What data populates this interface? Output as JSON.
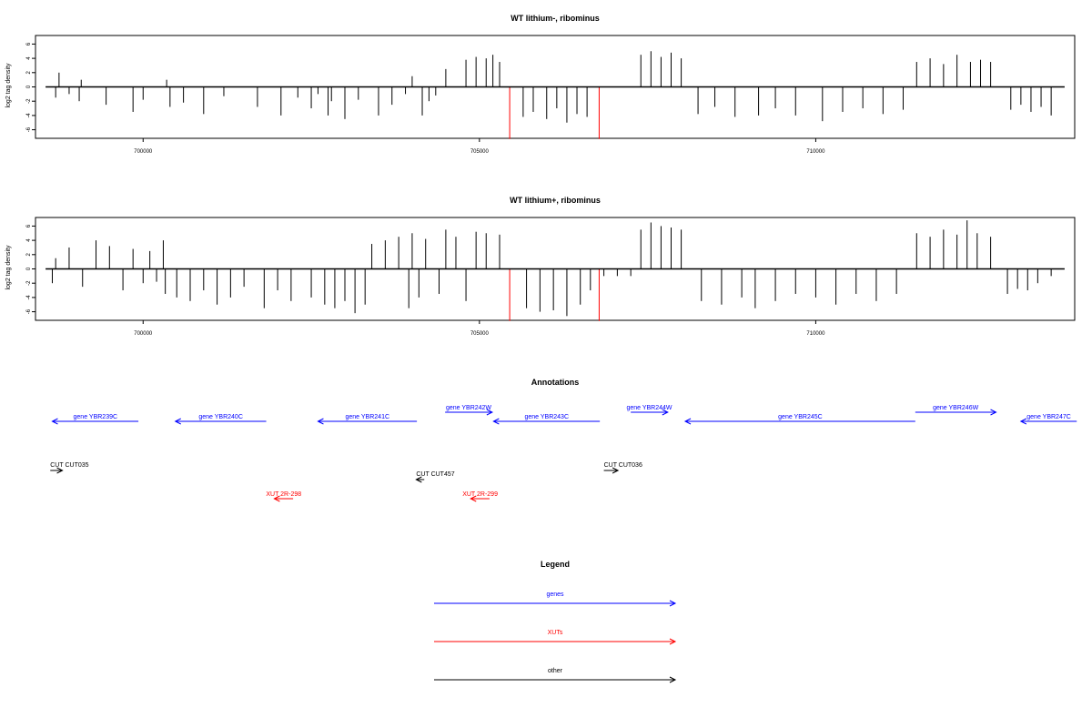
{
  "chart_data": [
    {
      "type": "bar",
      "title": "WT lithium-, ribominus",
      "xlabel": "",
      "ylabel": "log2 tag density",
      "x_ticks": [
        700000,
        705000,
        710000
      ],
      "x_tick_labels": [
        "700000",
        "705000",
        "710000"
      ],
      "y_ticks": [
        -6,
        -4,
        -2,
        0,
        2,
        4,
        6
      ],
      "y_tick_labels": [
        "-6",
        "-4",
        "-2",
        "0",
        "2",
        "4",
        "6"
      ],
      "xlim": [
        698400,
        713850
      ],
      "ylim": [
        -7.2,
        7.2
      ],
      "track_range": [
        698550,
        713700
      ],
      "series": [
        {
          "color": "#000000",
          "values": [
            [
              698700,
              -1.5
            ],
            [
              698750,
              2
            ],
            [
              698900,
              -1
            ],
            [
              699050,
              -2
            ],
            [
              699080,
              1
            ],
            [
              699450,
              -2.5
            ],
            [
              699850,
              -3.5
            ],
            [
              700000,
              -1.8
            ],
            [
              700350,
              1
            ],
            [
              700400,
              -2.8
            ],
            [
              700600,
              -2.2
            ],
            [
              700900,
              -3.8
            ],
            [
              701200,
              -1.3
            ],
            [
              701700,
              -2.8
            ],
            [
              702050,
              -4
            ],
            [
              702300,
              -1.5
            ],
            [
              702500,
              -3
            ],
            [
              702600,
              -1
            ],
            [
              702750,
              -4
            ],
            [
              702800,
              -2
            ],
            [
              703000,
              -4.5
            ],
            [
              703200,
              -1.8
            ],
            [
              703500,
              -4
            ],
            [
              703700,
              -2.5
            ],
            [
              703900,
              -1
            ],
            [
              704000,
              1.5
            ],
            [
              704150,
              -4
            ],
            [
              704250,
              -2
            ],
            [
              704350,
              -1.2
            ],
            [
              704500,
              2.5
            ],
            [
              704800,
              3.8
            ],
            [
              704950,
              4.2
            ],
            [
              705100,
              4
            ],
            [
              705200,
              4.5
            ],
            [
              705300,
              3.5
            ],
            [
              705650,
              -4.2
            ],
            [
              705800,
              -3.5
            ],
            [
              706000,
              -4.5
            ],
            [
              706150,
              -3
            ],
            [
              706300,
              -5
            ],
            [
              706450,
              -3.8
            ],
            [
              706600,
              -4.2
            ],
            [
              707400,
              4.5
            ],
            [
              707550,
              5
            ],
            [
              707700,
              4.2
            ],
            [
              707850,
              4.8
            ],
            [
              708000,
              4
            ],
            [
              708250,
              -3.8
            ],
            [
              708500,
              -2.8
            ],
            [
              708800,
              -4.2
            ],
            [
              709150,
              -4
            ],
            [
              709400,
              -3
            ],
            [
              709700,
              -4
            ],
            [
              710100,
              -4.8
            ],
            [
              710400,
              -3.5
            ],
            [
              710700,
              -3
            ],
            [
              711000,
              -3.8
            ],
            [
              711300,
              -3.2
            ],
            [
              711500,
              3.5
            ],
            [
              711700,
              4
            ],
            [
              711900,
              3.2
            ],
            [
              712100,
              4.5
            ],
            [
              712300,
              3.5
            ],
            [
              712450,
              3.8
            ],
            [
              712600,
              3.5
            ],
            [
              712900,
              -3.2
            ],
            [
              713050,
              -2.5
            ],
            [
              713200,
              -3.5
            ],
            [
              713350,
              -2.8
            ],
            [
              713500,
              -4
            ]
          ]
        },
        {
          "color": "#ff0000",
          "values": [
            [
              705450,
              -7.3
            ],
            [
              706780,
              -7.3
            ]
          ]
        }
      ]
    },
    {
      "type": "bar",
      "title": "WT lithium+, ribominus",
      "xlabel": "",
      "ylabel": "log2 tag density",
      "x_ticks": [
        700000,
        705000,
        710000
      ],
      "x_tick_labels": [
        "700000",
        "705000",
        "710000"
      ],
      "y_ticks": [
        -6,
        -4,
        -2,
        0,
        2,
        4,
        6
      ],
      "y_tick_labels": [
        "-6",
        "-4",
        "-2",
        "0",
        "2",
        "4",
        "6"
      ],
      "xlim": [
        698400,
        713850
      ],
      "ylim": [
        -7.2,
        7.2
      ],
      "track_range": [
        698550,
        713700
      ],
      "series": [
        {
          "color": "#000000",
          "values": [
            [
              698650,
              -2
            ],
            [
              698700,
              1.5
            ],
            [
              698900,
              3
            ],
            [
              699100,
              -2.5
            ],
            [
              699300,
              4
            ],
            [
              699500,
              3.2
            ],
            [
              699700,
              -3
            ],
            [
              699850,
              2.8
            ],
            [
              700000,
              -2
            ],
            [
              700100,
              2.5
            ],
            [
              700200,
              -1.8
            ],
            [
              700300,
              4
            ],
            [
              700330,
              -3.5
            ],
            [
              700500,
              -4
            ],
            [
              700700,
              -4.5
            ],
            [
              700900,
              -3
            ],
            [
              701100,
              -5
            ],
            [
              701300,
              -4
            ],
            [
              701500,
              -2.5
            ],
            [
              701800,
              -5.5
            ],
            [
              702000,
              -3
            ],
            [
              702200,
              -4.5
            ],
            [
              702500,
              -4
            ],
            [
              702700,
              -5
            ],
            [
              702850,
              -5.5
            ],
            [
              703000,
              -4.5
            ],
            [
              703150,
              -6.2
            ],
            [
              703300,
              -5
            ],
            [
              703400,
              3.5
            ],
            [
              703600,
              4
            ],
            [
              703800,
              4.5
            ],
            [
              703950,
              -5.5
            ],
            [
              704000,
              5
            ],
            [
              704100,
              -4
            ],
            [
              704200,
              4.2
            ],
            [
              704400,
              -3.5
            ],
            [
              704500,
              5.5
            ],
            [
              704650,
              4.5
            ],
            [
              704800,
              -4.5
            ],
            [
              704950,
              5.2
            ],
            [
              705100,
              5
            ],
            [
              705300,
              4.8
            ],
            [
              705700,
              -5.5
            ],
            [
              705900,
              -6
            ],
            [
              706100,
              -5.8
            ],
            [
              706300,
              -6.6
            ],
            [
              706500,
              -5
            ],
            [
              706650,
              -3
            ],
            [
              706850,
              -1
            ],
            [
              707050,
              -1
            ],
            [
              707250,
              -1
            ],
            [
              707400,
              5.5
            ],
            [
              707550,
              6.5
            ],
            [
              707700,
              6
            ],
            [
              707850,
              5.8
            ],
            [
              708000,
              5.5
            ],
            [
              708300,
              -4.5
            ],
            [
              708600,
              -5
            ],
            [
              708900,
              -4
            ],
            [
              709100,
              -5.5
            ],
            [
              709400,
              -4.5
            ],
            [
              709700,
              -3.5
            ],
            [
              710000,
              -4
            ],
            [
              710300,
              -5
            ],
            [
              710600,
              -3.5
            ],
            [
              710900,
              -4.5
            ],
            [
              711200,
              -3.5
            ],
            [
              711500,
              5
            ],
            [
              711700,
              4.5
            ],
            [
              711900,
              5.5
            ],
            [
              712100,
              4.8
            ],
            [
              712250,
              6.8
            ],
            [
              712400,
              5
            ],
            [
              712600,
              4.5
            ],
            [
              712850,
              -3.5
            ],
            [
              713000,
              -2.8
            ],
            [
              713150,
              -3
            ],
            [
              713300,
              -2
            ],
            [
              713500,
              -1
            ]
          ]
        },
        {
          "color": "#ff0000",
          "values": [
            [
              705450,
              -7.3
            ],
            [
              706780,
              -7.3
            ]
          ]
        }
      ]
    }
  ],
  "annotations": {
    "title": "Annotations",
    "genes": [
      {
        "label": "gene YBR239C",
        "start": 698650,
        "end": 699930,
        "strand": "-"
      },
      {
        "label": "gene YBR240C",
        "start": 700480,
        "end": 701830,
        "strand": "-"
      },
      {
        "label": "gene YBR241C",
        "start": 702600,
        "end": 704070,
        "strand": "-"
      },
      {
        "label": "gene YBR242W",
        "start": 704490,
        "end": 705190,
        "strand": "+"
      },
      {
        "label": "gene YBR243C",
        "start": 705210,
        "end": 706790,
        "strand": "-"
      },
      {
        "label": "gene YBR244W",
        "start": 707250,
        "end": 707800,
        "strand": "+"
      },
      {
        "label": "gene YBR245C",
        "start": 708060,
        "end": 711480,
        "strand": "-"
      },
      {
        "label": "gene YBR246W",
        "start": 711480,
        "end": 712680,
        "strand": "+"
      },
      {
        "label": "gene YBR247C",
        "start": 713050,
        "end": 713880,
        "strand": "-"
      }
    ],
    "other": [
      {
        "label": "CUT CUT035",
        "start": 698620,
        "end": 698800,
        "strand": "+"
      },
      {
        "label": "CUT CUT457",
        "start": 704060,
        "end": 704180,
        "strand": "-"
      },
      {
        "label": "CUT CUT036",
        "start": 706850,
        "end": 707060,
        "strand": "+"
      }
    ],
    "xuts": [
      {
        "label": "XUT 2R-298",
        "start": 701950,
        "end": 702230,
        "strand": "-"
      },
      {
        "label": "XUT 2R-299",
        "start": 704870,
        "end": 705150,
        "strand": "-"
      }
    ]
  },
  "legend": {
    "title": "Legend",
    "items": [
      {
        "label": "genes",
        "color": "#0000ff"
      },
      {
        "label": "XUTs",
        "color": "#ff0000"
      },
      {
        "label": "other",
        "color": "#000000"
      }
    ]
  }
}
